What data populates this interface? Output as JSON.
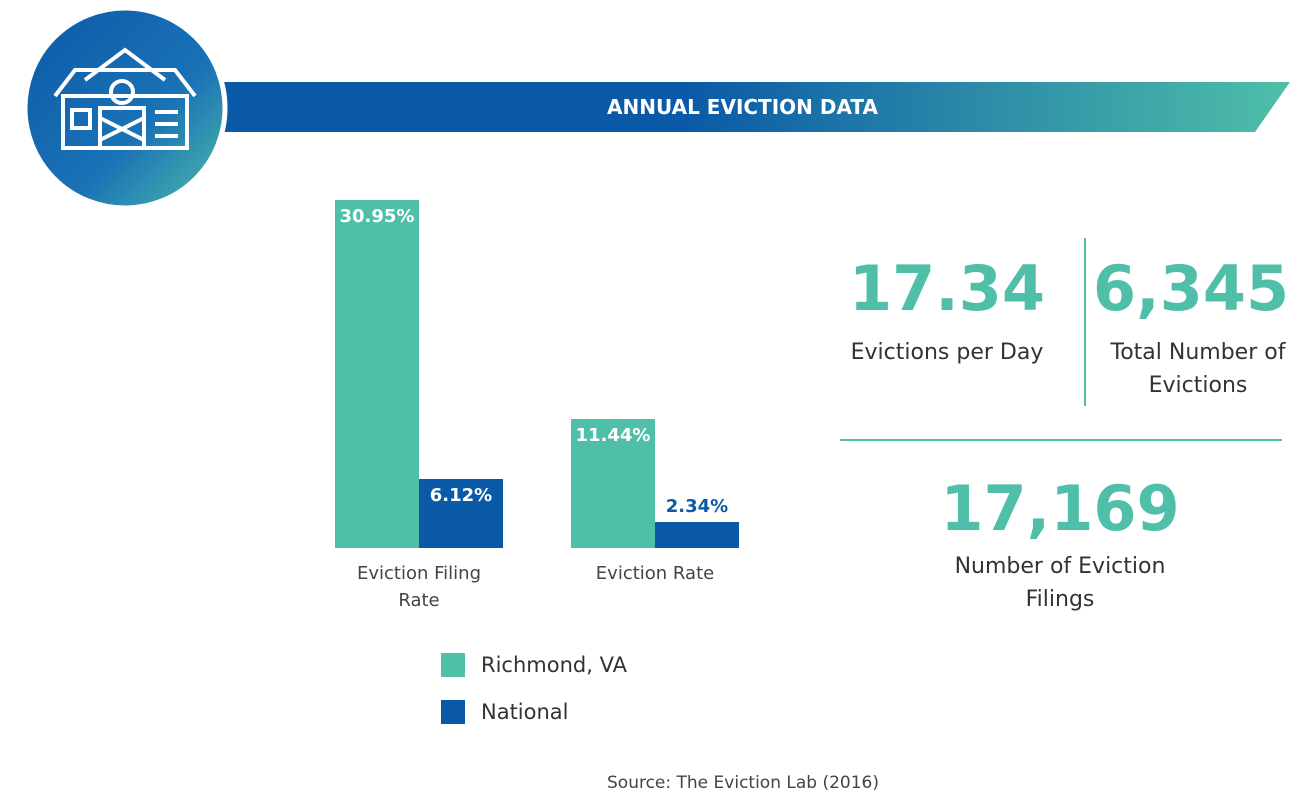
{
  "header": {
    "title": "ANNUAL EVICTION DATA"
  },
  "chart_data": {
    "type": "bar",
    "categories": [
      "Eviction Filing Rate",
      "Eviction Rate"
    ],
    "series": [
      {
        "name": "Richmond, VA",
        "color": "#4fbfa9",
        "values": [
          30.95,
          11.44
        ],
        "value_labels": [
          "30.95%",
          "11.44%"
        ]
      },
      {
        "name": "National",
        "color": "#0b5aa7",
        "values": [
          6.12,
          2.34
        ],
        "value_labels": [
          "6.12%",
          "2.34%"
        ]
      }
    ]
  },
  "stats": [
    {
      "value": "17.34",
      "label": "Evictions per Day"
    },
    {
      "value": "6,345",
      "label": "Total Number of Evictions"
    },
    {
      "value": "17,169",
      "label": "Number of Eviction Filings"
    }
  ],
  "source": "Source: The Eviction Lab (2016)"
}
